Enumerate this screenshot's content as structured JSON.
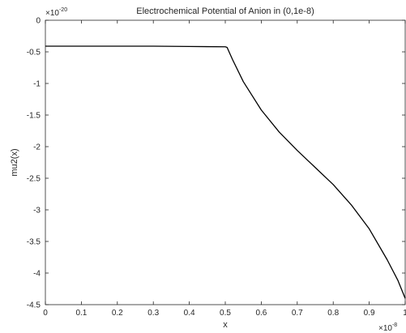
{
  "chart_data": {
    "type": "line",
    "title": "Electrochemical Potential of Anion in (0,1e-8)",
    "xlabel": "x",
    "ylabel": "mu2(x)",
    "x_exponent_label": "×10",
    "x_exponent_power": "-8",
    "y_exponent_label": "×10",
    "y_exponent_power": "-20",
    "xlim": [
      0,
      1
    ],
    "ylim": [
      -4.5,
      0
    ],
    "x_ticks": [
      0,
      0.1,
      0.2,
      0.3,
      0.4,
      0.5,
      0.6,
      0.7,
      0.8,
      0.9,
      1
    ],
    "x_tick_labels": [
      "0",
      "0.1",
      "0.2",
      "0.3",
      "0.4",
      "0.5",
      "0.6",
      "0.7",
      "0.8",
      "0.9",
      "1"
    ],
    "y_ticks": [
      0,
      -0.5,
      -1,
      -1.5,
      -2,
      -2.5,
      -3,
      -3.5,
      -4,
      -4.5
    ],
    "y_tick_labels": [
      "0",
      "-0.5",
      "-1",
      "-1.5",
      "-2",
      "-2.5",
      "-3",
      "-3.5",
      "-4",
      "-4.5"
    ],
    "grid": false,
    "series": [
      {
        "color": "#000000",
        "x": [
          0,
          0.1,
          0.2,
          0.3,
          0.4,
          0.5,
          0.505,
          0.52,
          0.55,
          0.6,
          0.65,
          0.7,
          0.75,
          0.8,
          0.85,
          0.9,
          0.95,
          0.98,
          1.0
        ],
        "y": [
          -0.41,
          -0.41,
          -0.41,
          -0.41,
          -0.415,
          -0.42,
          -0.43,
          -0.62,
          -0.97,
          -1.42,
          -1.77,
          -2.06,
          -2.33,
          -2.6,
          -2.92,
          -3.3,
          -3.79,
          -4.12,
          -4.4
        ]
      }
    ]
  }
}
